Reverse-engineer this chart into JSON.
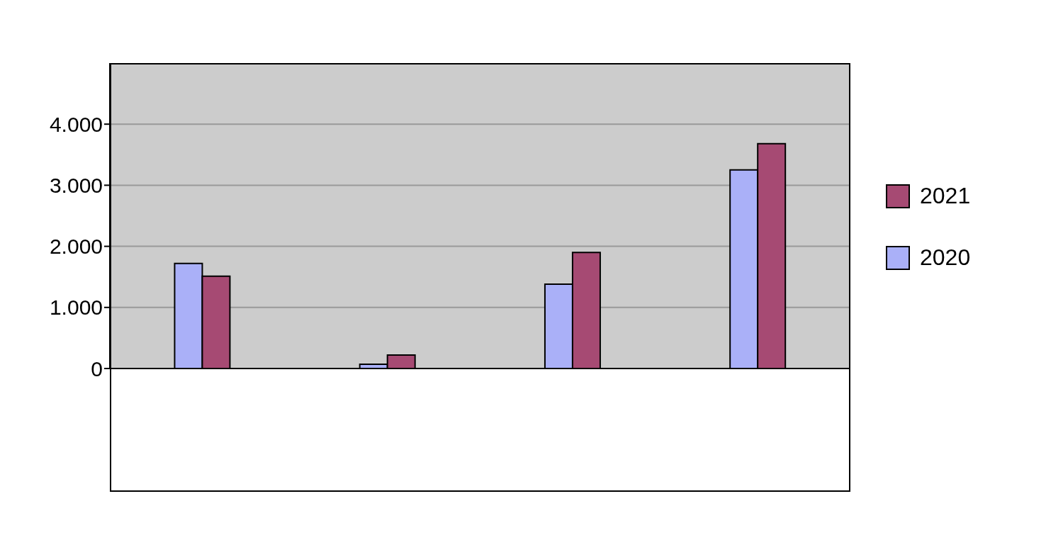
{
  "chart_data": {
    "type": "bar",
    "categories": [
      null,
      null,
      null,
      null
    ],
    "series": [
      {
        "name": "2020",
        "color": "#aab0f8",
        "values": [
          1720,
          70,
          1380,
          3250
        ]
      },
      {
        "name": "2021",
        "color": "#a64a73",
        "values": [
          1510,
          220,
          1900,
          3680
        ]
      }
    ],
    "ylim": [
      0,
      5000
    ],
    "yticks": [
      {
        "value": 0,
        "label": "0"
      },
      {
        "value": 1000,
        "label": "1.000"
      },
      {
        "value": 2000,
        "label": "2.000"
      },
      {
        "value": 3000,
        "label": "3.000"
      },
      {
        "value": 4000,
        "label": "4.000"
      }
    ],
    "grid": "y",
    "legend": "right"
  }
}
